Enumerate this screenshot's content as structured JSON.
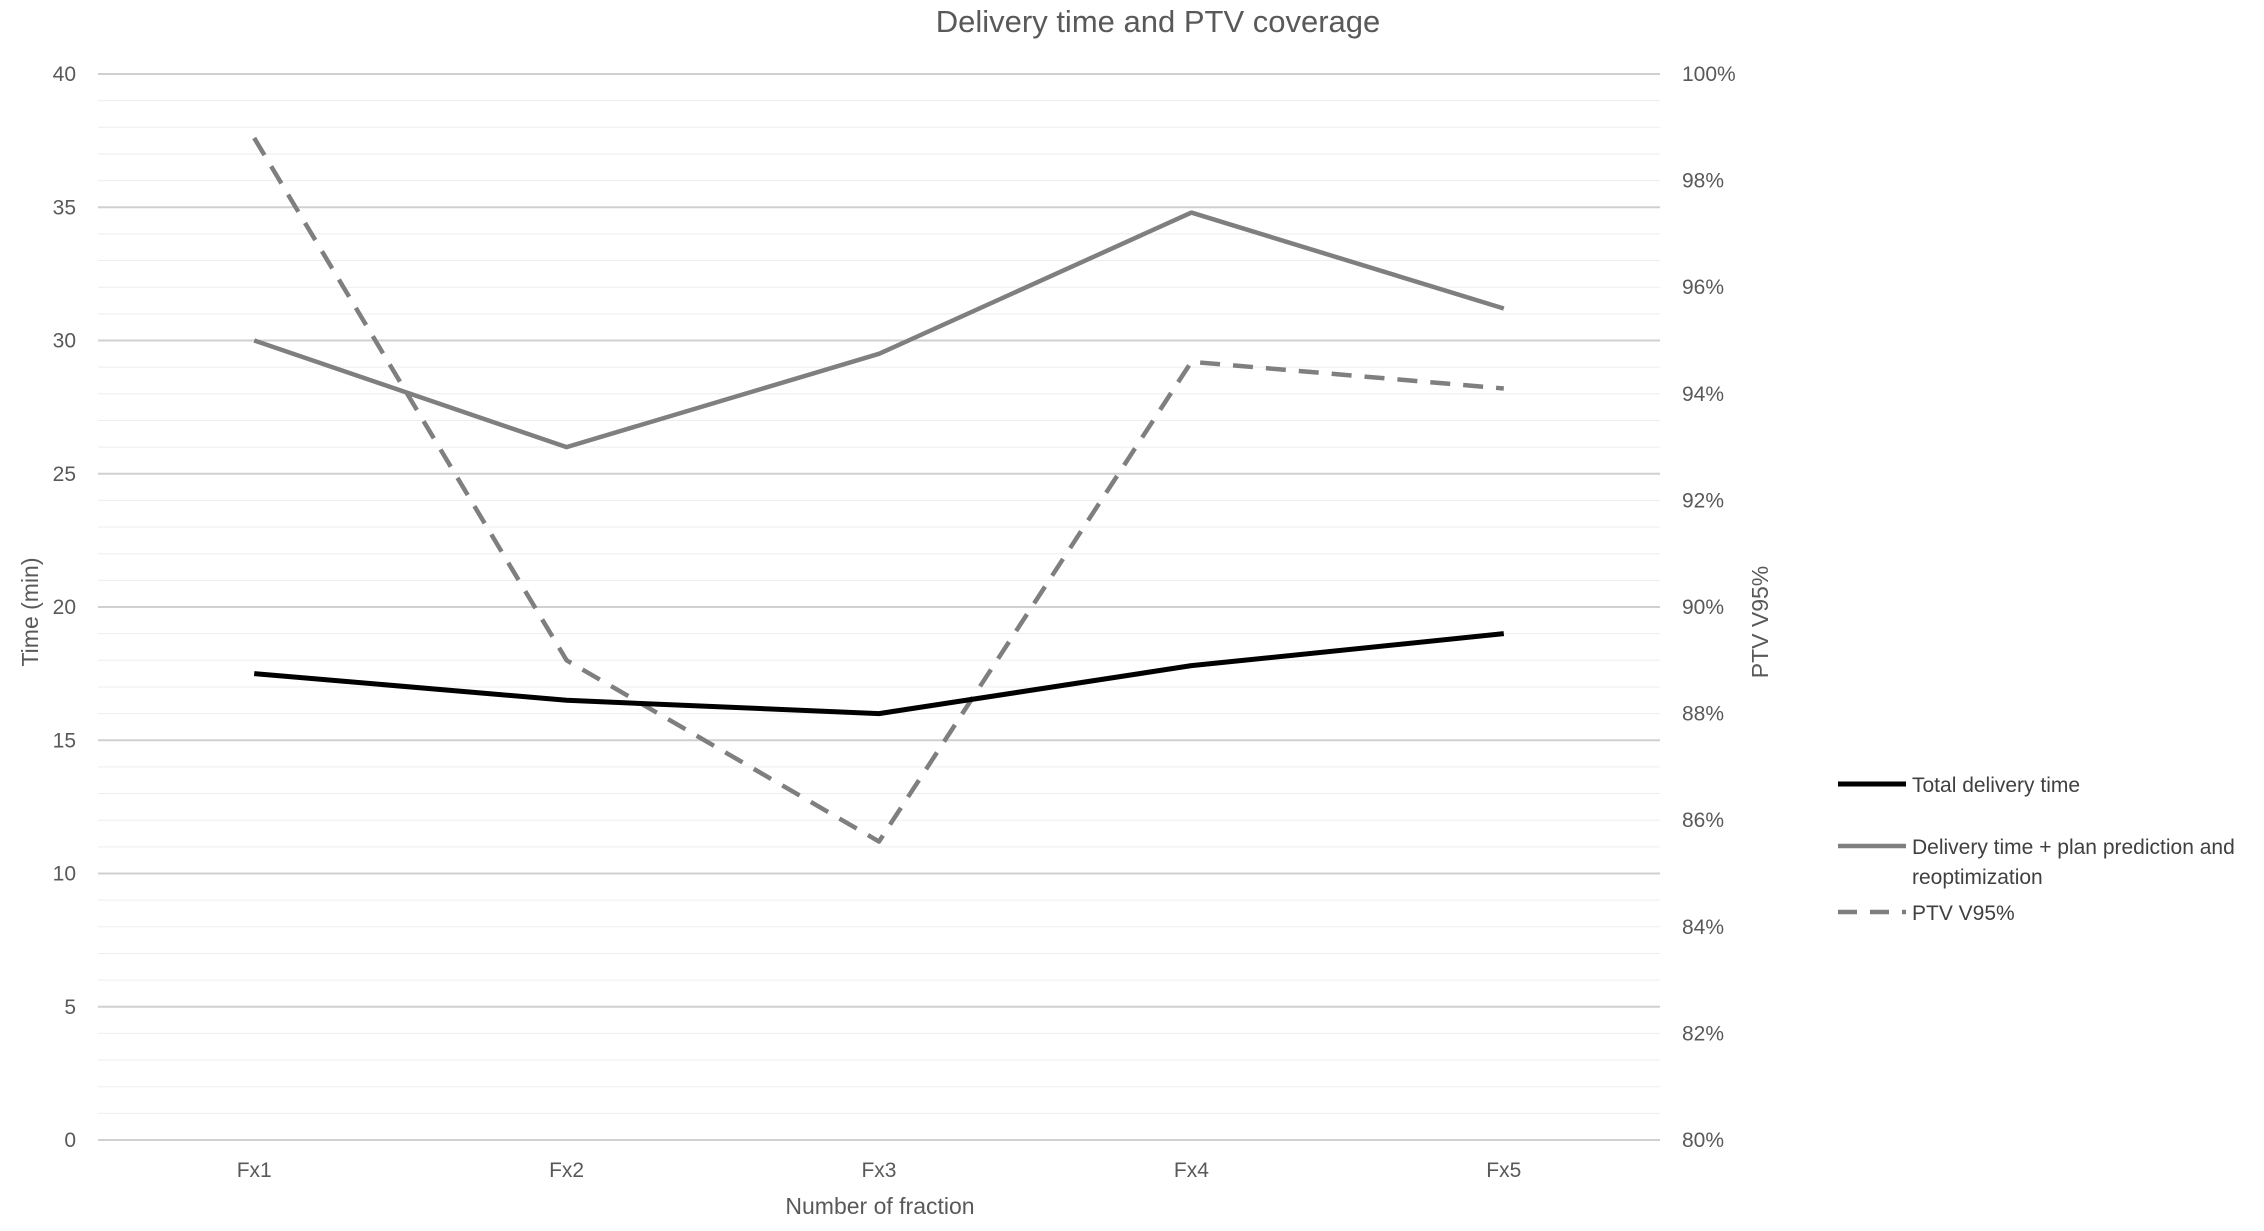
{
  "chart_data": {
    "type": "line",
    "title": "Delivery time and PTV coverage",
    "xlabel": "Number of fraction",
    "ylabel": "Time (min)",
    "y2label": "PTV V95%",
    "categories": [
      "Fx1",
      "Fx2",
      "Fx3",
      "Fx4",
      "Fx5"
    ],
    "ylim": [
      0,
      40
    ],
    "y_ticks": [
      "0",
      "5",
      "10",
      "15",
      "20",
      "25",
      "30",
      "35",
      "40"
    ],
    "y2lim": [
      80,
      100
    ],
    "y2_ticks": [
      "80%",
      "82%",
      "84%",
      "86%",
      "88%",
      "90%",
      "92%",
      "94%",
      "96%",
      "98%",
      "100%"
    ],
    "grid": "horizontal",
    "legend_position": "right",
    "series": [
      {
        "name": "Total delivery time",
        "axis": "left",
        "values": [
          17.5,
          16.5,
          16.0,
          17.8,
          19.0
        ],
        "color": "#000000",
        "style": "solid"
      },
      {
        "name": "Delivery time + plan prediction and reoptimization",
        "legend_lines": [
          "Delivery time + plan prediction and",
          "reoptimization"
        ],
        "axis": "left",
        "values": [
          30.0,
          26.0,
          29.5,
          34.8,
          31.2
        ],
        "color": "#7f7f7f",
        "style": "solid"
      },
      {
        "name": "PTV V95%",
        "axis": "right",
        "values": [
          98.8,
          89.0,
          85.6,
          94.6,
          94.1
        ],
        "color": "#7f7f7f",
        "style": "dashed"
      }
    ]
  }
}
